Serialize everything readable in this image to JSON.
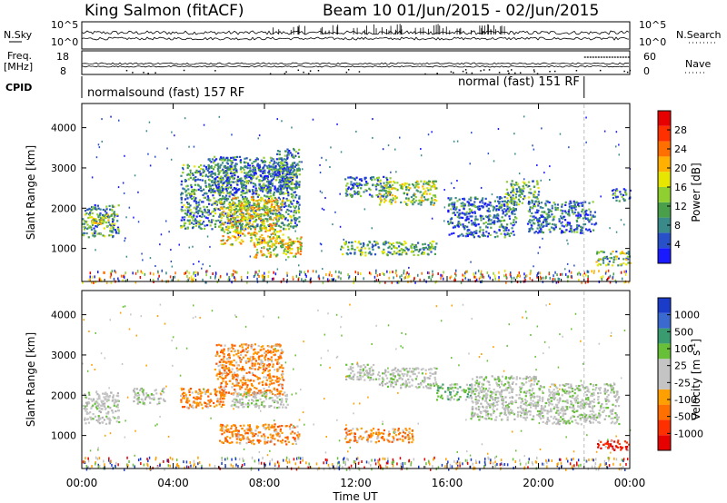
{
  "header": {
    "station": "King Salmon (fitACF)",
    "beam_date": "Beam 10  01/Jun/2015 - 02/Jun/2015"
  },
  "top_panels": {
    "nsky_label": "N.Sky",
    "nsearch_label": "N.Search",
    "freq_label_1": "Freq.",
    "freq_label_2": "[MHz]",
    "nave_label": "Nave",
    "cpid_label": "CPID",
    "nsky_ticks": [
      "10^5",
      "10^0"
    ],
    "nsearch_ticks": [
      "10^5",
      "10^0"
    ],
    "freq_ticks": [
      "18",
      "8"
    ],
    "nave_ticks": [
      "60",
      "0"
    ],
    "cpid_segments": [
      "normalsound (fast) 157 RF",
      "normal (fast) 151 RF"
    ],
    "cpid_change_hour": 22.0
  },
  "chart_data": [
    {
      "type": "heatmap",
      "panel": "power",
      "ylabel": "Slant Range [km]",
      "xlabel": "",
      "x_range_hours": [
        0,
        24
      ],
      "ylim": [
        180,
        4600
      ],
      "y_ticks": [
        1000,
        2000,
        3000,
        4000
      ],
      "colorbar_label": "Power [dB]",
      "colorbar_ticks": [
        "4",
        "8",
        "12",
        "16",
        "20",
        "24",
        "28"
      ],
      "colorbar_colors": [
        "#1a1aff",
        "#2850c8",
        "#3a8a8a",
        "#4aa04a",
        "#8fcf2f",
        "#e6e600",
        "#ffb000",
        "#ff7000",
        "#ff3000",
        "#e60000"
      ],
      "echo_regions": [
        {
          "t0": 0.0,
          "t1": 1.6,
          "r0": 1300,
          "r1": 2100,
          "level": 0.3
        },
        {
          "t0": 0.4,
          "t1": 1.4,
          "r0": 1600,
          "r1": 1900,
          "level": 0.5
        },
        {
          "t0": 4.3,
          "t1": 9.5,
          "r0": 1500,
          "r1": 3100,
          "level": 0.3
        },
        {
          "t0": 5.5,
          "t1": 9.0,
          "r0": 2400,
          "r1": 3300,
          "level": 0.2
        },
        {
          "t0": 6.0,
          "t1": 8.8,
          "r0": 1100,
          "r1": 2300,
          "level": 0.55
        },
        {
          "t0": 7.5,
          "t1": 9.6,
          "r0": 800,
          "r1": 1300,
          "level": 0.55
        },
        {
          "t0": 8.5,
          "t1": 9.5,
          "r0": 2500,
          "r1": 3500,
          "level": 0.25
        },
        {
          "t0": 11.5,
          "t1": 13.5,
          "r0": 2300,
          "r1": 2800,
          "level": 0.25
        },
        {
          "t0": 13.0,
          "t1": 15.5,
          "r0": 2100,
          "r1": 2700,
          "level": 0.45
        },
        {
          "t0": 11.3,
          "t1": 15.5,
          "r0": 850,
          "r1": 1200,
          "level": 0.35
        },
        {
          "t0": 16.0,
          "t1": 19.0,
          "r0": 1300,
          "r1": 2300,
          "level": 0.2
        },
        {
          "t0": 18.5,
          "t1": 20.0,
          "r0": 2100,
          "r1": 2700,
          "level": 0.35
        },
        {
          "t0": 19.5,
          "t1": 22.5,
          "r0": 1400,
          "r1": 2200,
          "level": 0.2
        },
        {
          "t0": 22.5,
          "t1": 24.0,
          "r0": 600,
          "r1": 950,
          "level": 0.4
        },
        {
          "t0": 23.2,
          "t1": 24.0,
          "r0": 2200,
          "r1": 2500,
          "level": 0.2
        }
      ]
    },
    {
      "type": "heatmap",
      "panel": "velocity",
      "ylabel": "Slant Range [km]",
      "xlabel": "Time UT",
      "x_range_hours": [
        0,
        24
      ],
      "x_tick_labels": [
        "00:00",
        "04:00",
        "08:00",
        "12:00",
        "16:00",
        "20:00",
        "00:00"
      ],
      "ylim": [
        180,
        4600
      ],
      "y_ticks": [
        1000,
        2000,
        3000,
        4000
      ],
      "colorbar_label": "Velocity [m s-1]",
      "colorbar_ticks": [
        "1000",
        "500",
        "100",
        "25",
        "-25",
        "-100",
        "-500",
        "-1000"
      ],
      "colorbar_colors": [
        "#1a3cc8",
        "#3a6ad0",
        "#3a9a70",
        "#68c038",
        "#c4c4c4",
        "#c4c4c4",
        "#ffa000",
        "#ff7000",
        "#ff3000",
        "#e60000"
      ],
      "echo_regions": [
        {
          "t0": 0.0,
          "t1": 1.6,
          "r0": 1300,
          "r1": 2100,
          "vclass": "gray"
        },
        {
          "t0": 2.2,
          "t1": 3.6,
          "r0": 1800,
          "r1": 2200,
          "vclass": "gray"
        },
        {
          "t0": 4.3,
          "t1": 6.2,
          "r0": 1700,
          "r1": 2200,
          "vclass": "orange"
        },
        {
          "t0": 5.8,
          "t1": 8.8,
          "r0": 2000,
          "r1": 3300,
          "vclass": "orange"
        },
        {
          "t0": 6.0,
          "t1": 9.5,
          "r0": 800,
          "r1": 1300,
          "vclass": "orange"
        },
        {
          "t0": 6.5,
          "t1": 9.0,
          "r0": 1700,
          "r1": 2100,
          "vclass": "gray"
        },
        {
          "t0": 11.5,
          "t1": 13.0,
          "r0": 2400,
          "r1": 2800,
          "vclass": "gray"
        },
        {
          "t0": 13.0,
          "t1": 15.5,
          "r0": 2200,
          "r1": 2700,
          "vclass": "gray"
        },
        {
          "t0": 11.5,
          "t1": 14.5,
          "r0": 850,
          "r1": 1200,
          "vclass": "orange"
        },
        {
          "t0": 15.5,
          "t1": 17.0,
          "r0": 1900,
          "r1": 2300,
          "vclass": "green"
        },
        {
          "t0": 17.0,
          "t1": 20.0,
          "r0": 1400,
          "r1": 2500,
          "vclass": "gray"
        },
        {
          "t0": 20.0,
          "t1": 23.5,
          "r0": 1300,
          "r1": 2300,
          "vclass": "gray"
        },
        {
          "t0": 22.5,
          "t1": 24.0,
          "r0": 650,
          "r1": 900,
          "vclass": "red"
        }
      ]
    }
  ]
}
